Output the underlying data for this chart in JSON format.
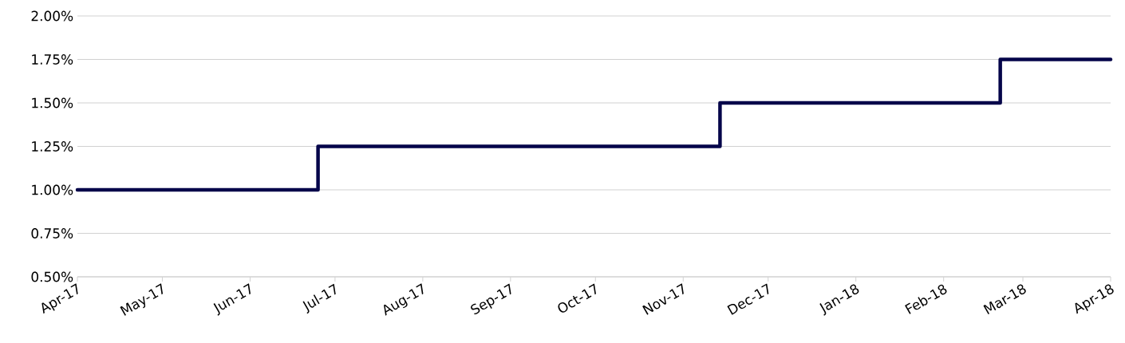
{
  "chart_data": {
    "type": "step",
    "grid": "y",
    "x": [
      "2017-04-01",
      "2017-06-25",
      "2017-11-14",
      "2018-02-21",
      "2018-04-01"
    ],
    "series": [
      {
        "color": "#05054a",
        "values": [
          1.0,
          1.25,
          1.5,
          1.75,
          1.75
        ]
      }
    ],
    "xlim": [
      "2017-04-01",
      "2018-04-01"
    ],
    "xticks": [
      {
        "value": "2017-04-01",
        "label": "Apr-17"
      },
      {
        "value": "2017-05-01",
        "label": "May-17"
      },
      {
        "value": "2017-06-01",
        "label": "Jun-17"
      },
      {
        "value": "2017-07-01",
        "label": "Jul-17"
      },
      {
        "value": "2017-08-01",
        "label": "Aug-17"
      },
      {
        "value": "2017-09-01",
        "label": "Sep-17"
      },
      {
        "value": "2017-10-01",
        "label": "Oct-17"
      },
      {
        "value": "2017-11-01",
        "label": "Nov-17"
      },
      {
        "value": "2017-12-01",
        "label": "Dec-17"
      },
      {
        "value": "2018-01-01",
        "label": "Jan-18"
      },
      {
        "value": "2018-02-01",
        "label": "Feb-18"
      },
      {
        "value": "2018-03-01",
        "label": "Mar-18"
      },
      {
        "value": "2018-04-01",
        "label": "Apr-18"
      }
    ],
    "ylim": [
      0.5,
      2.0
    ],
    "yticks": [
      {
        "value": 0.5,
        "label": "0.50%"
      },
      {
        "value": 0.75,
        "label": "0.75%"
      },
      {
        "value": 1.0,
        "label": "1.00%"
      },
      {
        "value": 1.25,
        "label": "1.25%"
      },
      {
        "value": 1.5,
        "label": "1.50%"
      },
      {
        "value": 1.75,
        "label": "1.75%"
      },
      {
        "value": 2.0,
        "label": "2.00%"
      }
    ]
  }
}
